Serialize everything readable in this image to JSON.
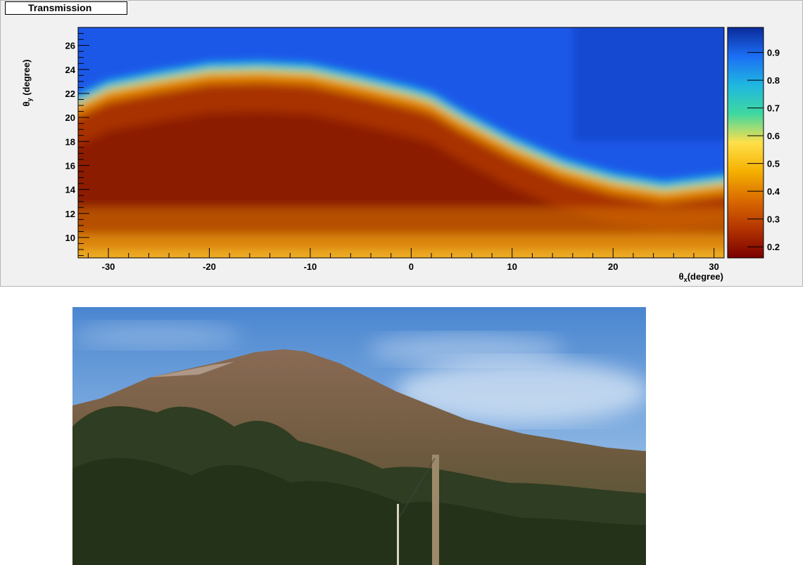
{
  "chart_data": {
    "type": "heatmap",
    "title": "Transmission",
    "xlabel": "θx(degree)",
    "ylabel": "θy (degree)",
    "xlim": [
      -33,
      31
    ],
    "ylim": [
      8.3,
      27.5
    ],
    "x_ticks": [
      -30,
      -20,
      -10,
      0,
      10,
      20,
      30
    ],
    "y_ticks": [
      10,
      12,
      14,
      16,
      18,
      20,
      22,
      24,
      26
    ],
    "colorbar": {
      "min": 0.16,
      "max": 0.99,
      "ticks": [
        0.2,
        0.3,
        0.4,
        0.5,
        0.6,
        0.7,
        0.8,
        0.9
      ]
    },
    "colormap": [
      "#7a0000",
      "#b33300",
      "#d96a00",
      "#f5b000",
      "#ffe04a",
      "#3fd8a0",
      "#1fb7e0",
      "#1c6ef5",
      "#0a2a9a"
    ],
    "boundary": {
      "description_x": [
        -33,
        -30,
        -25,
        -20,
        -15,
        -10,
        -5,
        0,
        2,
        5,
        10,
        15,
        20,
        25,
        31
      ],
      "theta_y": [
        21.8,
        23.0,
        23.8,
        24.5,
        24.6,
        24.4,
        23.5,
        22.5,
        22.0,
        20.5,
        18.3,
        16.5,
        15.3,
        14.6,
        15.2
      ]
    }
  },
  "photo": {
    "subject": "mountain-with-pine-forest-and-sky"
  }
}
